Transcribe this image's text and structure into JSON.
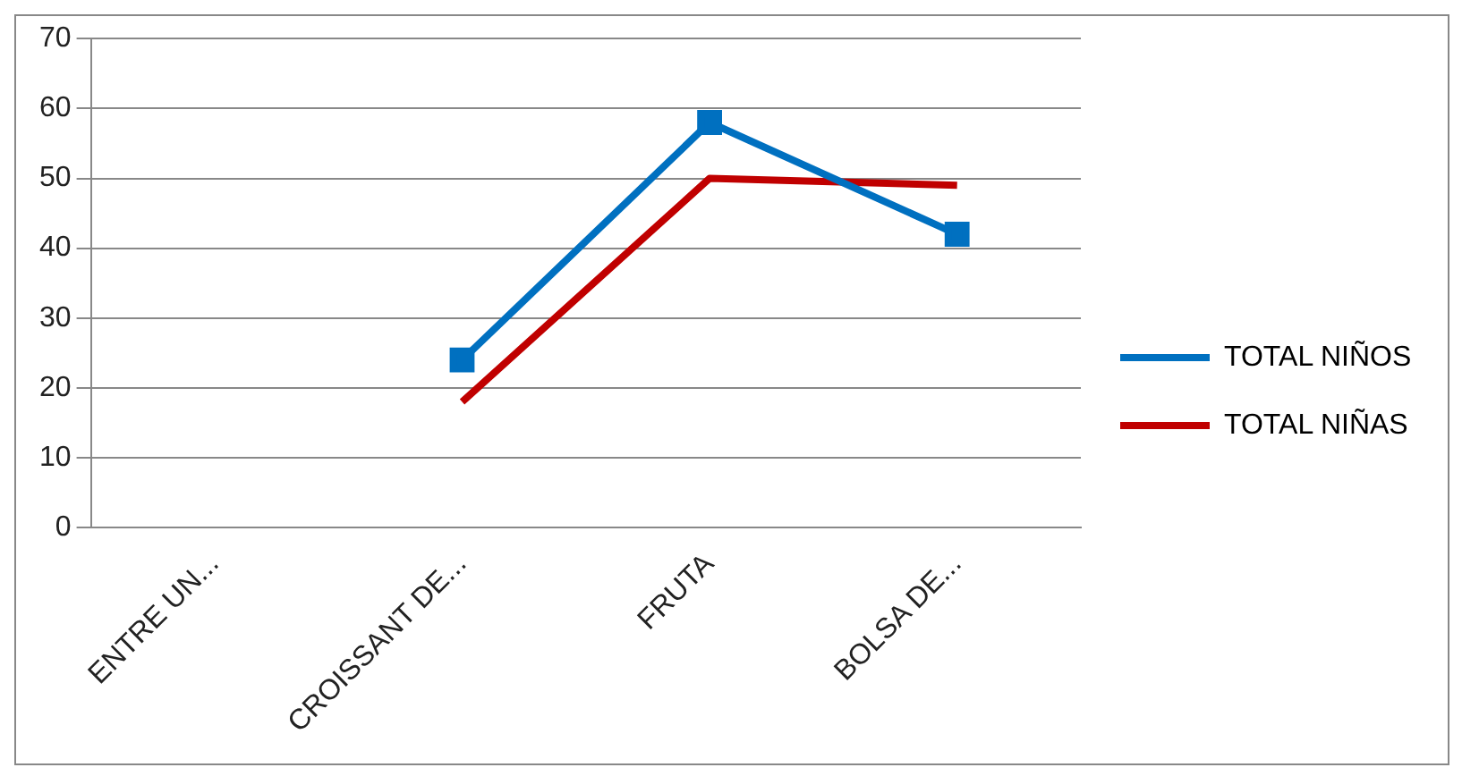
{
  "chart_data": {
    "type": "line",
    "categories": [
      "ENTRE UN...",
      "CROISSANT DE...",
      "FRUTA",
      "BOLSA DE..."
    ],
    "series": [
      {
        "name": "TOTAL NIÑOS",
        "color": "#0070c0",
        "marker": "square",
        "values": [
          null,
          24,
          58,
          42
        ]
      },
      {
        "name": "TOTAL NIÑAS",
        "color": "#c00000",
        "marker": "none",
        "values": [
          null,
          18,
          50,
          49
        ]
      }
    ],
    "ylim": [
      0,
      70
    ],
    "yticks": [
      0,
      10,
      20,
      30,
      40,
      50,
      60,
      70
    ],
    "grid": "y",
    "legend": "right",
    "line_style": "solid"
  }
}
